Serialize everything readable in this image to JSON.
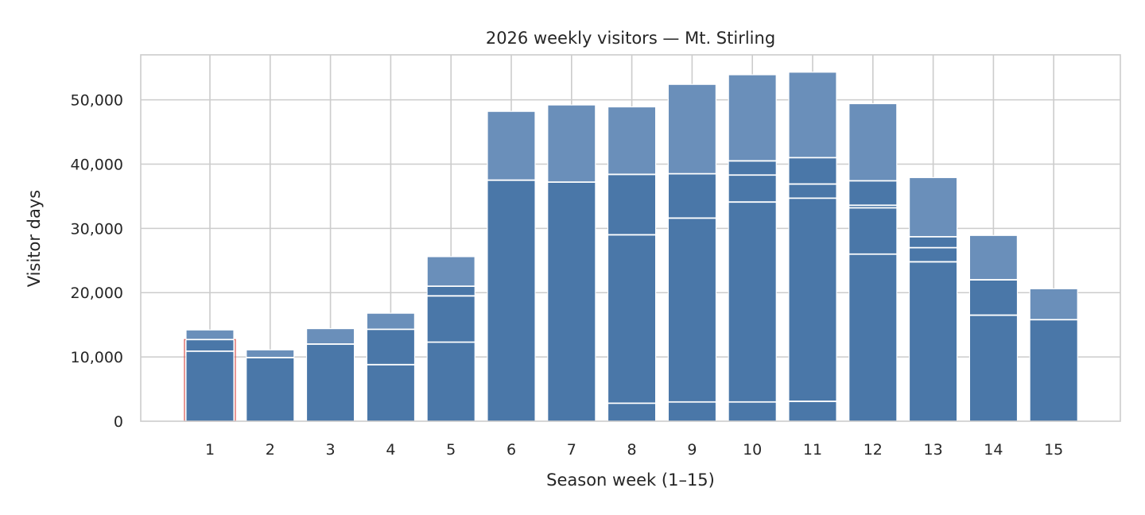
{
  "chart_data": {
    "type": "bar",
    "title": "2026 weekly visitors — Mt. Stirling",
    "xlabel": "Season week (1–15)",
    "ylabel": "Visitor days",
    "categories": [
      "1",
      "2",
      "3",
      "4",
      "5",
      "6",
      "7",
      "8",
      "9",
      "10",
      "11",
      "12",
      "13",
      "14",
      "15"
    ],
    "values": [
      14200,
      11100,
      14400,
      16800,
      25600,
      48200,
      49200,
      48900,
      52400,
      53900,
      54300,
      49400,
      37900,
      28900,
      20600
    ],
    "inner_markers": [
      [
        12700,
        10900
      ],
      [
        9900
      ],
      [
        12000
      ],
      [
        14300,
        8800
      ],
      [
        21000,
        19500,
        12300
      ],
      [
        37500
      ],
      [
        37200
      ],
      [
        38400,
        29000,
        2800
      ],
      [
        38500,
        31600,
        3000
      ],
      [
        40500,
        38300,
        34100,
        3000
      ],
      [
        41000,
        36900,
        34700,
        3100
      ],
      [
        37400,
        33600,
        33200,
        26000
      ],
      [
        28700,
        27000,
        24800
      ],
      [
        22000,
        16500
      ],
      [
        15800
      ]
    ],
    "ylim": [
      0,
      57000
    ],
    "yticks": [
      0,
      10000,
      20000,
      30000,
      40000,
      50000
    ],
    "ytick_labels": [
      "0",
      "10,000",
      "20,000",
      "30,000",
      "40,000",
      "50,000"
    ],
    "grid": true,
    "legend": "none",
    "highlight_category": "1",
    "highlight_value": 12700,
    "colors": {
      "bar_light": "#6a8fba",
      "bar_dark": "#4a77a8",
      "marker_line": "#ffffff",
      "highlight": "#d9534f",
      "grid": "#cccccc",
      "text": "#262626"
    }
  }
}
